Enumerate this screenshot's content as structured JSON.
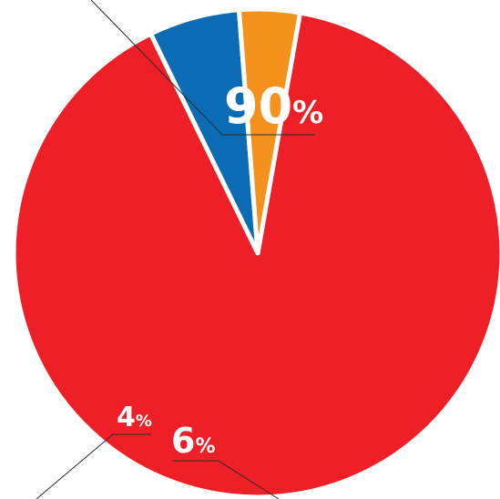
{
  "chart_data": {
    "type": "pie",
    "values": [
      90,
      6,
      4
    ],
    "labels": [
      "90%",
      "6%",
      "4%"
    ],
    "colors": [
      "#ee1f26",
      "#0b6bb4",
      "#f5921e"
    ],
    "slice_border": "#ffffff"
  }
}
